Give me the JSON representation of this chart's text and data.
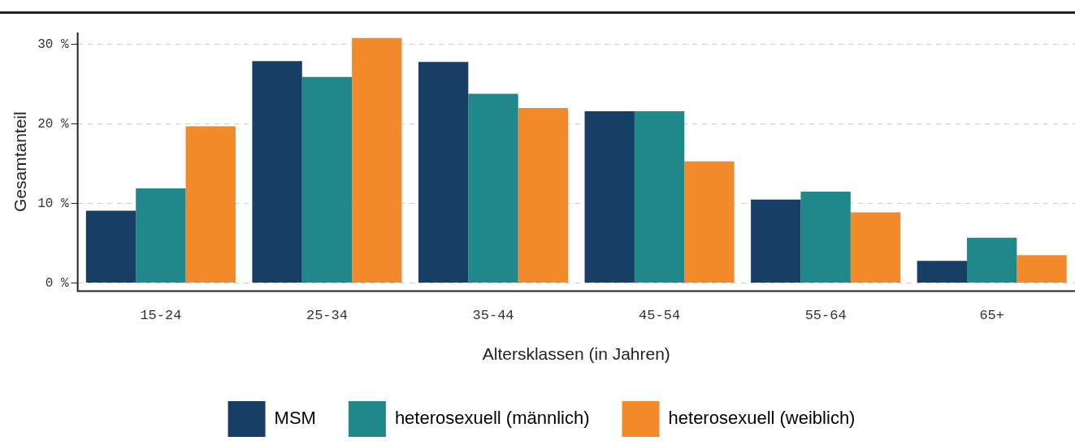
{
  "chart_data": {
    "type": "bar",
    "xlabel": "Altersklassen (in Jahren)",
    "ylabel": "Gesamtanteil",
    "categories": [
      "15-24",
      "25-34",
      "35-44",
      "45-54",
      "55-64",
      "65+"
    ],
    "series": [
      {
        "name": "MSM",
        "color": "#173f66",
        "values": [
          9.1,
          27.9,
          27.8,
          21.6,
          10.5,
          2.8
        ]
      },
      {
        "name": "heterosexuell (männlich)",
        "color": "#20878a",
        "values": [
          11.9,
          25.9,
          23.8,
          21.6,
          11.5,
          5.7
        ]
      },
      {
        "name": "heterosexuell (weiblich)",
        "color": "#f28a2c",
        "values": [
          19.7,
          30.8,
          22.0,
          15.3,
          8.9,
          3.5
        ]
      }
    ],
    "ylim": [
      -1,
      31.5
    ],
    "yticks": [
      {
        "value": 0,
        "label": "0 %"
      },
      {
        "value": 10,
        "label": "10 %"
      },
      {
        "value": 20,
        "label": "20 %"
      },
      {
        "value": 30,
        "label": "30 %"
      }
    ],
    "grid": "y",
    "legend": "bottom"
  }
}
